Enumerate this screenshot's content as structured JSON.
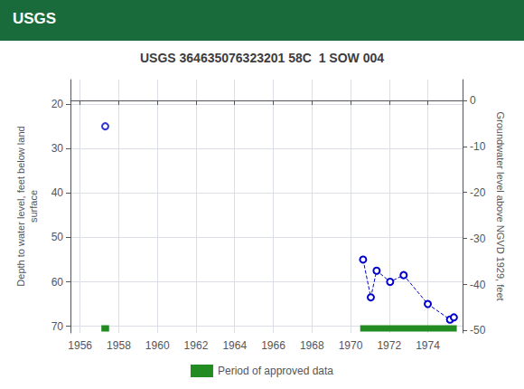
{
  "chart_data": {
    "type": "scatter",
    "title": "USGS 364635076323201 58C  1 SOW 004",
    "ylabel": "Depth to water level, feet below land\nsurface",
    "y2label": "Groundwater level above NGVD 1929, feet",
    "annotations": [
      {
        "text": "USGS",
        "color": "#1a6b3c"
      }
    ],
    "xlim": [
      1955.5,
      1975.8
    ],
    "xticks": [
      1956,
      1958,
      1960,
      1962,
      1964,
      1966,
      1968,
      1970,
      1972,
      1974
    ],
    "ylim": [
      71.5,
      14.5
    ],
    "yticks": [
      20,
      30,
      40,
      50,
      60,
      70
    ],
    "y2lim": [
      -50.5,
      4.5
    ],
    "y2ticks": [
      0,
      -10,
      -20,
      -30,
      -40,
      -50
    ],
    "grid": true,
    "legend": "bottom",
    "series": [
      {
        "type": "scatter",
        "marker": "circle_open",
        "color": "#0000cc",
        "x": [
          1957.3
        ],
        "values": [
          25.0
        ]
      },
      {
        "type": "line",
        "marker": "circle_open",
        "line_style": "dashed",
        "color": "#0000cc",
        "x": [
          1970.65,
          1971.05,
          1971.35,
          1972.05,
          1972.75,
          1974.0,
          1975.15,
          1975.35
        ],
        "values": [
          55.0,
          63.5,
          57.5,
          60.0,
          58.5,
          65.0,
          68.5,
          68.0
        ]
      },
      {
        "name": "Period of approved data",
        "type": "bar",
        "orientation": "horizontal",
        "color": "#228B22",
        "y": 70.5,
        "segments": [
          [
            1957.1,
            1957.5
          ],
          [
            1970.5,
            1975.5
          ]
        ]
      }
    ]
  }
}
